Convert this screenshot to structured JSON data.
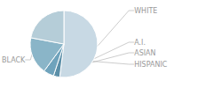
{
  "chart_data": {
    "type": "pie",
    "categories": [
      "WHITE",
      "A.I.",
      "ASIAN",
      "HISPANIC",
      "BLACK"
    ],
    "values": [
      52,
      3,
      5,
      18,
      22
    ],
    "colors": [
      "#c8d9e4",
      "#5b8fa8",
      "#6fa3bc",
      "#8ab5c8",
      "#b5cdd8"
    ]
  }
}
